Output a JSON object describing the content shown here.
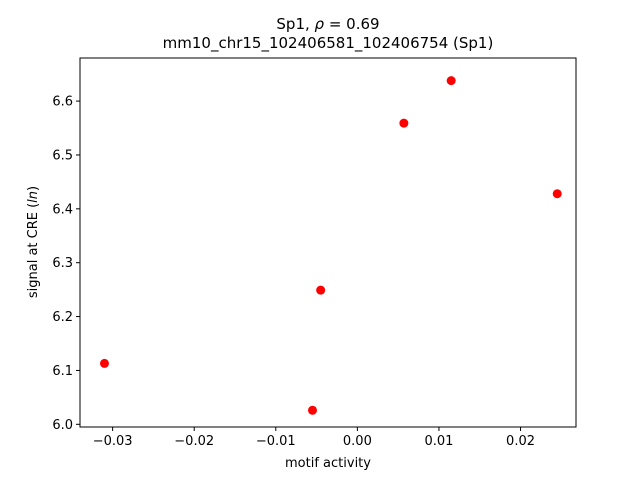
{
  "chart_data": {
    "type": "scatter",
    "title_line1_prefix": "Sp1, ",
    "title_line1_rho": "ρ",
    "title_line1_value": " = 0.69",
    "title_line2": "mm10_chr15_102406581_102406754 (Sp1)",
    "xlabel": "motif activity",
    "ylabel_prefix": "signal at CRE (",
    "ylabel_italic": "ln",
    "ylabel_suffix": ")",
    "xlim": [
      -0.034,
      0.0268
    ],
    "ylim": [
      5.995,
      6.68
    ],
    "xticks": [
      -0.03,
      -0.02,
      -0.01,
      0.0,
      0.01,
      0.02
    ],
    "xtick_labels": [
      "−0.03",
      "−0.02",
      "−0.01",
      "0.00",
      "0.01",
      "0.02"
    ],
    "yticks": [
      6.0,
      6.1,
      6.2,
      6.3,
      6.4,
      6.5,
      6.6
    ],
    "ytick_labels": [
      "6.0",
      "6.1",
      "6.2",
      "6.3",
      "6.4",
      "6.5",
      "6.6"
    ],
    "grid": false,
    "marker_color": "#ff0000",
    "points": [
      {
        "x": -0.031,
        "y": 6.113
      },
      {
        "x": -0.0055,
        "y": 6.026
      },
      {
        "x": -0.0045,
        "y": 6.249
      },
      {
        "x": 0.0057,
        "y": 6.559
      },
      {
        "x": 0.0115,
        "y": 6.638
      },
      {
        "x": 0.0245,
        "y": 6.428
      }
    ]
  }
}
